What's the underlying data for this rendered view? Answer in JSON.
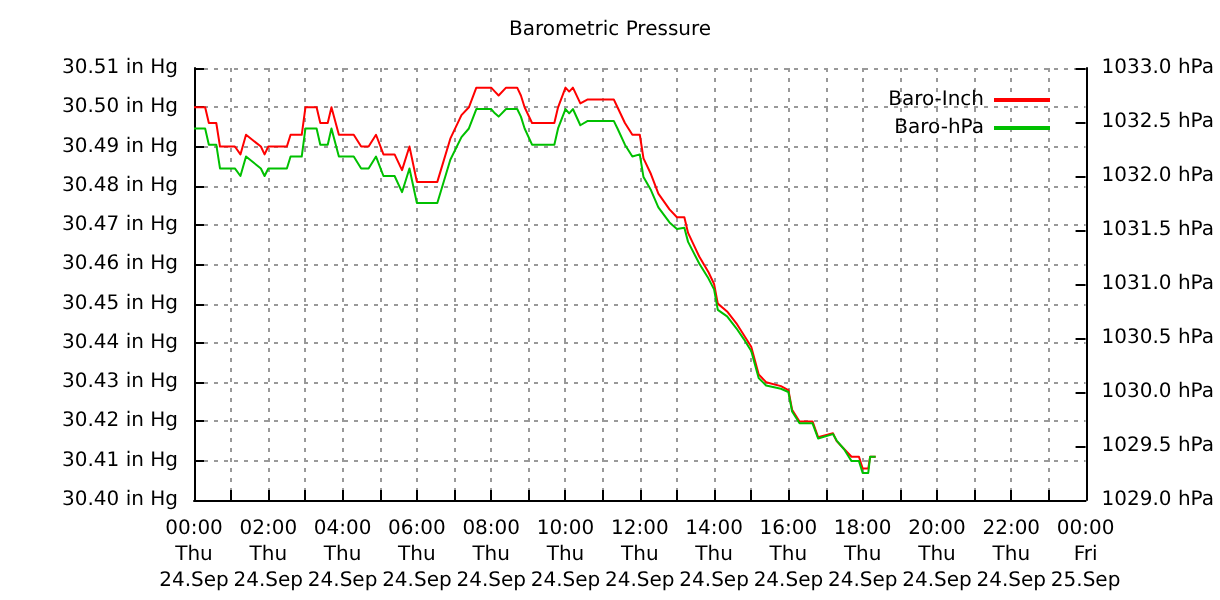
{
  "chart_data": {
    "type": "line",
    "title": "Barometric Pressure",
    "x": [
      "--09-24T00:00",
      "--09-24T00:18",
      "--09-24T00:24",
      "--09-24T00:36",
      "--09-24T00:42",
      "--09-24T01:06",
      "--09-24T01:15",
      "--09-24T01:24",
      "--09-24T01:48",
      "--09-24T01:54",
      "--09-24T02:00",
      "--09-24T02:30",
      "--09-24T02:36",
      "--09-24T02:54",
      "--09-24T03:00",
      "--09-24T03:18",
      "--09-24T03:24",
      "--09-24T03:36",
      "--09-24T03:42",
      "--09-24T03:54",
      "--09-24T04:18",
      "--09-24T04:30",
      "--09-24T04:42",
      "--09-24T04:54",
      "--09-24T05:06",
      "--09-24T05:24",
      "--09-24T05:36",
      "--09-24T05:48",
      "--09-24T06:00",
      "--09-24T06:33",
      "--09-24T06:54",
      "--09-24T07:12",
      "--09-24T07:24",
      "--09-24T07:36",
      "--09-24T08:00",
      "--09-24T08:06",
      "--09-24T08:12",
      "--09-24T08:24",
      "--09-24T08:42",
      "--09-24T08:48",
      "--09-24T08:54",
      "--09-24T09:06",
      "--09-24T09:42",
      "--09-24T09:48",
      "--09-24T10:00",
      "--09-24T10:06",
      "--09-24T10:12",
      "--09-24T10:24",
      "--09-24T10:36",
      "--09-24T11:18",
      "--09-24T11:24",
      "--09-24T11:36",
      "--09-24T11:48",
      "--09-24T12:00",
      "--09-24T12:06",
      "--09-24T12:18",
      "--09-24T12:30",
      "--09-24T12:48",
      "--09-24T13:00",
      "--09-24T13:12",
      "--09-24T13:18",
      "--09-24T13:36",
      "--09-24T13:51",
      "--09-24T14:00",
      "--09-24T14:06",
      "--09-24T14:21",
      "--09-24T14:36",
      "--09-24T14:48",
      "--09-24T15:00",
      "--09-24T15:12",
      "--09-24T15:24",
      "--09-24T15:48",
      "--09-24T16:00",
      "--09-24T16:06",
      "--09-24T16:18",
      "--09-24T16:39",
      "--09-24T16:48",
      "--09-24T17:12",
      "--09-24T17:18",
      "--09-24T17:30",
      "--09-24T17:42",
      "--09-24T17:54",
      "--09-24T18:00",
      "--09-24T18:09",
      "--09-24T18:12",
      "--09-24T18:21"
    ],
    "series": [
      {
        "name": "Baro-Inch",
        "color": "#ff0000",
        "values": [
          30.5,
          30.5,
          30.496,
          30.496,
          30.49,
          30.49,
          30.488,
          30.493,
          30.49,
          30.488,
          30.49,
          30.49,
          30.493,
          30.493,
          30.5,
          30.5,
          30.496,
          30.496,
          30.5,
          30.493,
          30.493,
          30.49,
          30.49,
          30.493,
          30.488,
          30.488,
          30.484,
          30.49,
          30.481,
          30.481,
          30.492,
          30.498,
          30.5,
          30.505,
          30.505,
          30.504,
          30.503,
          30.505,
          30.505,
          30.503,
          30.5,
          30.496,
          30.496,
          30.5,
          30.505,
          30.504,
          30.505,
          30.501,
          30.502,
          30.502,
          30.5,
          30.496,
          30.493,
          30.493,
          30.487,
          30.483,
          30.478,
          30.474,
          30.472,
          30.472,
          30.468,
          30.462,
          30.458,
          30.455,
          30.45,
          30.448,
          30.445,
          30.442,
          30.439,
          30.432,
          30.43,
          30.429,
          30.428,
          30.423,
          30.42,
          30.42,
          30.416,
          30.417,
          30.415,
          30.413,
          30.411,
          30.411,
          30.408,
          30.408,
          30.411,
          30.411
        ]
      },
      {
        "name": "Baro-hPa",
        "color": "#00c000",
        "axis": "y2",
        "values": [
          1032.44,
          1032.44,
          1032.29,
          1032.29,
          1032.07,
          1032.07,
          1032.0,
          1032.18,
          1032.07,
          1032.0,
          1032.07,
          1032.07,
          1032.18,
          1032.18,
          1032.44,
          1032.44,
          1032.29,
          1032.29,
          1032.44,
          1032.18,
          1032.18,
          1032.07,
          1032.07,
          1032.18,
          1032.0,
          1032.0,
          1031.85,
          1032.07,
          1031.75,
          1031.75,
          1032.15,
          1032.36,
          1032.44,
          1032.62,
          1032.62,
          1032.58,
          1032.55,
          1032.62,
          1032.62,
          1032.55,
          1032.44,
          1032.29,
          1032.29,
          1032.44,
          1032.62,
          1032.58,
          1032.62,
          1032.47,
          1032.51,
          1032.51,
          1032.44,
          1032.29,
          1032.18,
          1032.2,
          1031.99,
          1031.87,
          1031.71,
          1031.57,
          1031.51,
          1031.52,
          1031.39,
          1031.19,
          1031.05,
          1030.95,
          1030.76,
          1030.7,
          1030.59,
          1030.49,
          1030.38,
          1030.13,
          1030.06,
          1030.03,
          1030.0,
          1029.82,
          1029.71,
          1029.71,
          1029.57,
          1029.61,
          1029.55,
          1029.47,
          1029.36,
          1029.36,
          1029.25,
          1029.25,
          1029.4,
          1029.4
        ]
      }
    ],
    "xlim": [
      "--09-24T00:00",
      "--09-25T00:00"
    ],
    "xticks": [
      {
        "value": "--09-24T00:00",
        "label": "00:00\nThu\n24.Sep"
      },
      {
        "value": "--09-24T01:00",
        "label": null
      },
      {
        "value": "--09-24T02:00",
        "label": "02:00\nThu\n24.Sep"
      },
      {
        "value": "--09-24T03:00",
        "label": null
      },
      {
        "value": "--09-24T04:00",
        "label": "04:00\nThu\n24.Sep"
      },
      {
        "value": "--09-24T05:00",
        "label": null
      },
      {
        "value": "--09-24T06:00",
        "label": "06:00\nThu\n24.Sep"
      },
      {
        "value": "--09-24T07:00",
        "label": null
      },
      {
        "value": "--09-24T08:00",
        "label": "08:00\nThu\n24.Sep"
      },
      {
        "value": "--09-24T09:00",
        "label": null
      },
      {
        "value": "--09-24T10:00",
        "label": "10:00\nThu\n24.Sep"
      },
      {
        "value": "--09-24T11:00",
        "label": null
      },
      {
        "value": "--09-24T12:00",
        "label": "12:00\nThu\n24.Sep"
      },
      {
        "value": "--09-24T13:00",
        "label": null
      },
      {
        "value": "--09-24T14:00",
        "label": "14:00\nThu\n24.Sep"
      },
      {
        "value": "--09-24T15:00",
        "label": null
      },
      {
        "value": "--09-24T16:00",
        "label": "16:00\nThu\n24.Sep"
      },
      {
        "value": "--09-24T17:00",
        "label": null
      },
      {
        "value": "--09-24T18:00",
        "label": "18:00\nThu\n24.Sep"
      },
      {
        "value": "--09-24T19:00",
        "label": null
      },
      {
        "value": "--09-24T20:00",
        "label": "20:00\nThu\n24.Sep"
      },
      {
        "value": "--09-24T21:00",
        "label": null
      },
      {
        "value": "--09-24T22:00",
        "label": "22:00\nThu\n24.Sep"
      },
      {
        "value": "--09-24T23:00",
        "label": null
      },
      {
        "value": "--09-25T00:00",
        "label": "00:00\nFri\n25.Sep"
      }
    ],
    "ylim": [
      30.4,
      30.51
    ],
    "yticks": [
      {
        "value": 30.4,
        "label": "30.40 in Hg"
      },
      {
        "value": 30.41,
        "label": "30.41 in Hg"
      },
      {
        "value": 30.42,
        "label": "30.42 in Hg"
      },
      {
        "value": 30.43,
        "label": "30.43 in Hg"
      },
      {
        "value": 30.44,
        "label": "30.44 in Hg"
      },
      {
        "value": 30.45,
        "label": "30.45 in Hg"
      },
      {
        "value": 30.46,
        "label": "30.46 in Hg"
      },
      {
        "value": 30.47,
        "label": "30.47 in Hg"
      },
      {
        "value": 30.48,
        "label": "30.48 in Hg"
      },
      {
        "value": 30.49,
        "label": "30.49 in Hg"
      },
      {
        "value": 30.5,
        "label": "30.50 in Hg"
      },
      {
        "value": 30.51,
        "label": "30.51 in Hg"
      }
    ],
    "y2lim": [
      1029.0,
      1033.0
    ],
    "y2ticks": [
      {
        "value": 1029.0,
        "label": "1029.0 hPa"
      },
      {
        "value": 1029.5,
        "label": "1029.5 hPa"
      },
      {
        "value": 1030.0,
        "label": "1030.0 hPa"
      },
      {
        "value": 1030.5,
        "label": "1030.5 hPa"
      },
      {
        "value": 1031.0,
        "label": "1031.0 hPa"
      },
      {
        "value": 1031.5,
        "label": "1031.5 hPa"
      },
      {
        "value": 1032.0,
        "label": "1032.0 hPa"
      },
      {
        "value": 1032.5,
        "label": "1032.5 hPa"
      },
      {
        "value": 1033.0,
        "label": "1033.0 hPa"
      }
    ],
    "grid": true,
    "legend": "top right",
    "marker": "none",
    "line_style": "solid"
  }
}
